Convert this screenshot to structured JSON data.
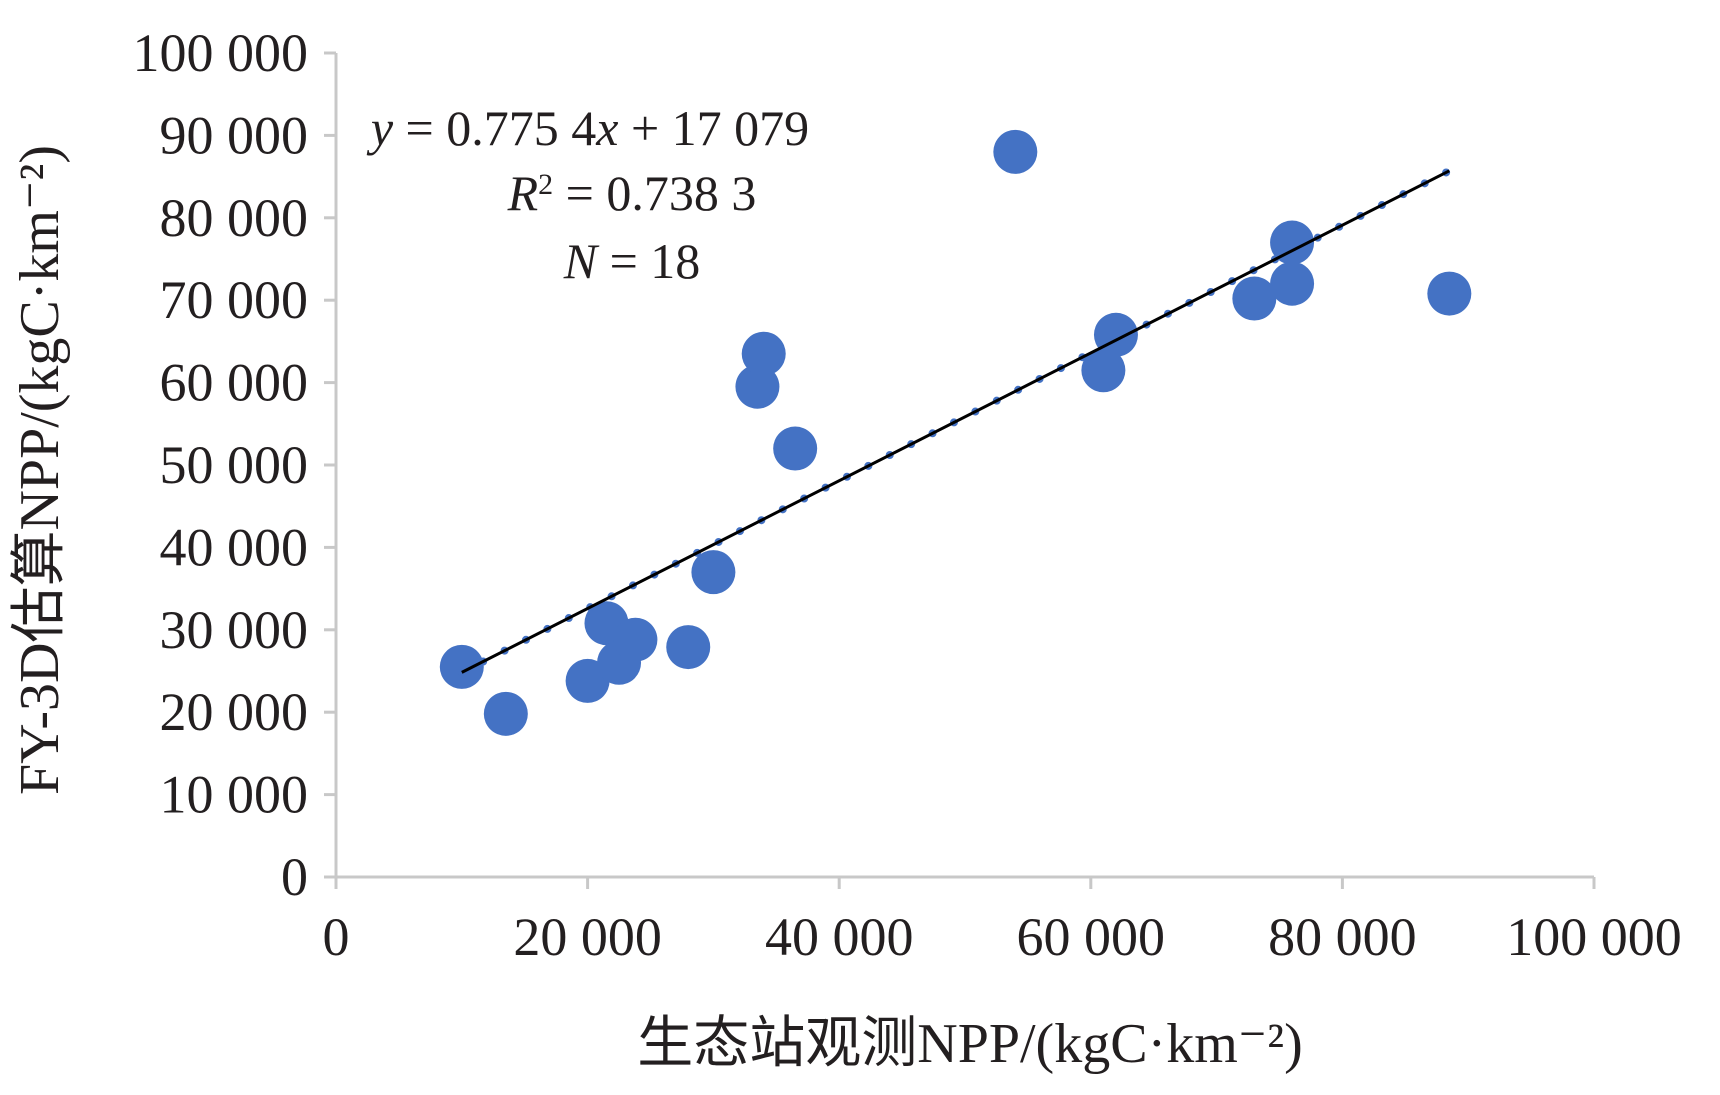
{
  "chart_data": {
    "type": "scatter",
    "title": "",
    "xlabel": "生态站观测NPP/(kgC·km⁻²)",
    "ylabel": "FY-3D估算NPP/(kgC·km⁻²)",
    "xlim": [
      0,
      100000
    ],
    "ylim": [
      0,
      100000
    ],
    "x_ticks": [
      0,
      20000,
      40000,
      60000,
      80000,
      100000
    ],
    "x_tick_labels": [
      "0",
      "20 000",
      "40 000",
      "60 000",
      "80 000",
      "100 000"
    ],
    "y_ticks": [
      0,
      10000,
      20000,
      30000,
      40000,
      50000,
      60000,
      70000,
      80000,
      90000,
      100000
    ],
    "y_tick_labels": [
      "0",
      "10 000",
      "20 000",
      "30 000",
      "40 000",
      "50 000",
      "60 000",
      "70 000",
      "80 000",
      "90 000",
      "100 000"
    ],
    "grid": false,
    "marker_color": "#4472c4",
    "trend_color": "#000000",
    "points": [
      {
        "x": 10000,
        "y": 25500
      },
      {
        "x": 13500,
        "y": 19800
      },
      {
        "x": 20000,
        "y": 23800
      },
      {
        "x": 21500,
        "y": 30800
      },
      {
        "x": 22500,
        "y": 26000
      },
      {
        "x": 23800,
        "y": 28800
      },
      {
        "x": 28000,
        "y": 27900
      },
      {
        "x": 30000,
        "y": 37000
      },
      {
        "x": 33500,
        "y": 59500
      },
      {
        "x": 34000,
        "y": 63500
      },
      {
        "x": 36500,
        "y": 52000
      },
      {
        "x": 54000,
        "y": 88000
      },
      {
        "x": 61000,
        "y": 61500
      },
      {
        "x": 62000,
        "y": 65800
      },
      {
        "x": 73000,
        "y": 70200
      },
      {
        "x": 76000,
        "y": 72000
      },
      {
        "x": 76000,
        "y": 77000
      },
      {
        "x": 88500,
        "y": 70800
      }
    ],
    "trendline": {
      "slope": 0.7754,
      "intercept": 17079,
      "x_range": [
        10000,
        88500
      ]
    },
    "annotations": {
      "equation_y": "y",
      "equation_rest": " = 0.775 4",
      "equation_x": "x",
      "equation_tail": " + 17 079",
      "r2_label": "R",
      "r2_sup": "2",
      "r2_value": " = 0.738 3",
      "n_label": "N",
      "n_value": " = 18"
    }
  }
}
